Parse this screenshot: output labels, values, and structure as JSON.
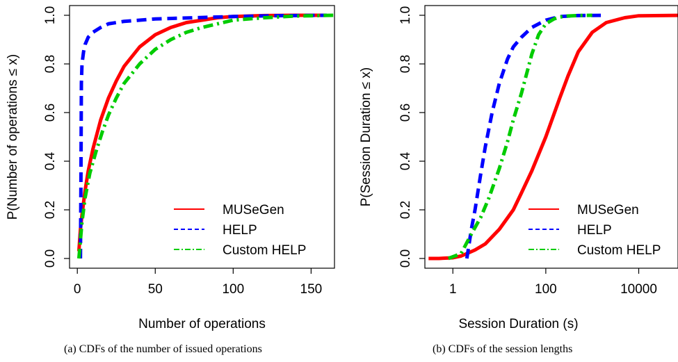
{
  "chart_data": [
    {
      "type": "line",
      "xlabel": "Number of operations",
      "ylabel": "P(Number of operations ≤ x)",
      "xlim": [
        -5,
        165
      ],
      "ylim": [
        -0.04,
        1.04
      ],
      "x_ticks": [
        0,
        50,
        100,
        150
      ],
      "y_ticks": [
        0.0,
        0.2,
        0.4,
        0.6,
        0.8,
        1.0
      ],
      "x_tick_labels": [
        "0",
        "50",
        "100",
        "150"
      ],
      "y_tick_labels": [
        "0.0",
        "0.2",
        "0.4",
        "0.6",
        "0.8",
        "1.0"
      ],
      "legend_position": "bottom-right",
      "grid": false,
      "caption": "(a)  CDFs of the number of issued operations",
      "series": [
        {
          "name": "MUSeGen",
          "color": "#ff0000",
          "style": "solid",
          "x": [
            1,
            2,
            3,
            5,
            7,
            10,
            15,
            20,
            25,
            30,
            40,
            50,
            60,
            70,
            80,
            90,
            100,
            120,
            140,
            160
          ],
          "y": [
            0.03,
            0.12,
            0.18,
            0.28,
            0.36,
            0.45,
            0.57,
            0.66,
            0.73,
            0.79,
            0.87,
            0.92,
            0.95,
            0.97,
            0.98,
            0.99,
            0.995,
            0.999,
            1.0,
            1.0
          ]
        },
        {
          "name": "HELP",
          "color": "#0000ff",
          "style": "dashed",
          "x": [
            2,
            2.3,
            2.6,
            3,
            4,
            5,
            7,
            10,
            15,
            20,
            30,
            50,
            75,
            100,
            125,
            160
          ],
          "y": [
            0.0,
            0.3,
            0.72,
            0.8,
            0.85,
            0.88,
            0.91,
            0.93,
            0.95,
            0.965,
            0.975,
            0.985,
            0.99,
            0.995,
            0.998,
            1.0
          ]
        },
        {
          "name": "Custom HELP",
          "color": "#00cc00",
          "style": "dashdot",
          "x": [
            1,
            3,
            5,
            8,
            12,
            16,
            20,
            25,
            30,
            40,
            50,
            60,
            70,
            80,
            100,
            120,
            140,
            165
          ],
          "y": [
            0.0,
            0.15,
            0.25,
            0.35,
            0.44,
            0.52,
            0.59,
            0.66,
            0.72,
            0.8,
            0.86,
            0.9,
            0.93,
            0.95,
            0.98,
            0.99,
            0.997,
            1.0
          ]
        }
      ]
    },
    {
      "type": "line",
      "xlabel": "Session Duration (s)",
      "ylabel": "P(Session Duration ≤ x)",
      "x_scale": "log",
      "xlim": [
        0.25,
        70000
      ],
      "ylim": [
        -0.04,
        1.04
      ],
      "x_ticks": [
        1,
        100,
        10000
      ],
      "y_ticks": [
        0.0,
        0.2,
        0.4,
        0.6,
        0.8,
        1.0
      ],
      "x_tick_labels": [
        "1",
        "100",
        "10000"
      ],
      "y_tick_labels": [
        "0.0",
        "0.2",
        "0.4",
        "0.6",
        "0.8",
        "1.0"
      ],
      "legend_position": "bottom-right",
      "grid": false,
      "caption": "(b)  CDFs of the session lengths",
      "series": [
        {
          "name": "MUSeGen",
          "color": "#ff0000",
          "style": "solid",
          "x": [
            0.3,
            0.5,
            1,
            1.5,
            2,
            3,
            5,
            10,
            20,
            30,
            50,
            100,
            200,
            300,
            500,
            1000,
            2000,
            5000,
            10000,
            100000
          ],
          "y": [
            0.0,
            0.0,
            0.003,
            0.01,
            0.02,
            0.035,
            0.06,
            0.12,
            0.2,
            0.27,
            0.36,
            0.5,
            0.66,
            0.75,
            0.85,
            0.93,
            0.97,
            0.99,
            0.998,
            1.0
          ]
        },
        {
          "name": "HELP",
          "color": "#0000ff",
          "style": "dashed",
          "x": [
            2,
            2.2,
            2.5,
            3,
            4,
            5,
            7,
            10,
            15,
            20,
            30,
            50,
            100,
            200,
            500,
            2000
          ],
          "y": [
            0.0,
            0.05,
            0.12,
            0.2,
            0.35,
            0.46,
            0.6,
            0.72,
            0.82,
            0.87,
            0.91,
            0.95,
            0.98,
            0.995,
            0.999,
            1.0
          ]
        },
        {
          "name": "Custom HELP",
          "color": "#00cc00",
          "style": "dashdot",
          "x": [
            0.8,
            1.5,
            2.5,
            4,
            6,
            10,
            15,
            20,
            30,
            40,
            50,
            70,
            100,
            150,
            200,
            300,
            500,
            1000
          ],
          "y": [
            0.0,
            0.02,
            0.1,
            0.17,
            0.25,
            0.37,
            0.48,
            0.57,
            0.68,
            0.77,
            0.84,
            0.92,
            0.965,
            0.985,
            0.993,
            0.997,
            0.999,
            1.0
          ]
        }
      ]
    }
  ]
}
